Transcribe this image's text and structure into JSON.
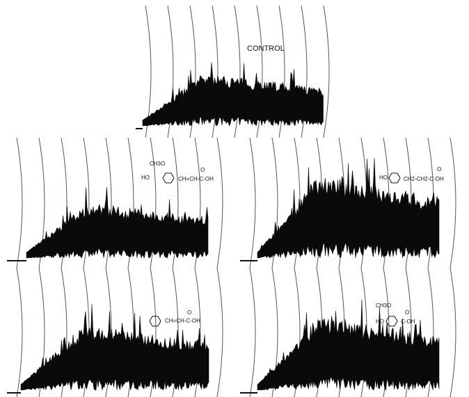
{
  "panels": [
    {
      "label": "CONTROL"
    },
    {
      "labels": [
        "CH3O",
        "HO",
        "CH=CH-C-OH",
        "O"
      ]
    },
    {
      "labels": [
        "HO",
        "CH2-CH2-C-OH",
        "O"
      ]
    },
    {
      "labels": [
        "CH=CH-C-OH",
        "O"
      ]
    },
    {
      "labels": [
        "CH3O",
        "HO",
        "C-OH",
        "O"
      ]
    }
  ]
}
